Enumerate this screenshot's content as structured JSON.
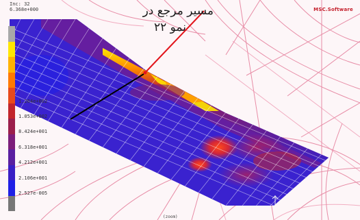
{
  "hud": {
    "line1": "Inc: 32",
    "line2": "6.368e+000"
  },
  "logo": "MSC.Software",
  "annotation": {
    "line1": "مسیر مرجع در",
    "line2": "نمو ۲۲"
  },
  "legend": {
    "labels": [
      "",
      "",
      "",
      "",
      "",
      "1.264e+002",
      "1.053e+002",
      "8.424e+001",
      "6.318e+001",
      "4.212e+001",
      "2.106e+001",
      "2.527e-005"
    ],
    "colors": [
      "#a8a8a8",
      "#ffe600",
      "#ffb300",
      "#ff7a00",
      "#e84a1c",
      "#c2262c",
      "#9b1f4c",
      "#7c1e7a",
      "#5a1fa0",
      "#3a1fc5",
      "#1f1fe6",
      "#777777"
    ]
  },
  "footer": "(zoom)",
  "colors": {
    "annotation_arrow": "#e2141b",
    "path_line": "#000000",
    "mesh_lines": "#e46b8c",
    "strip_base": "#3d2ad8"
  }
}
